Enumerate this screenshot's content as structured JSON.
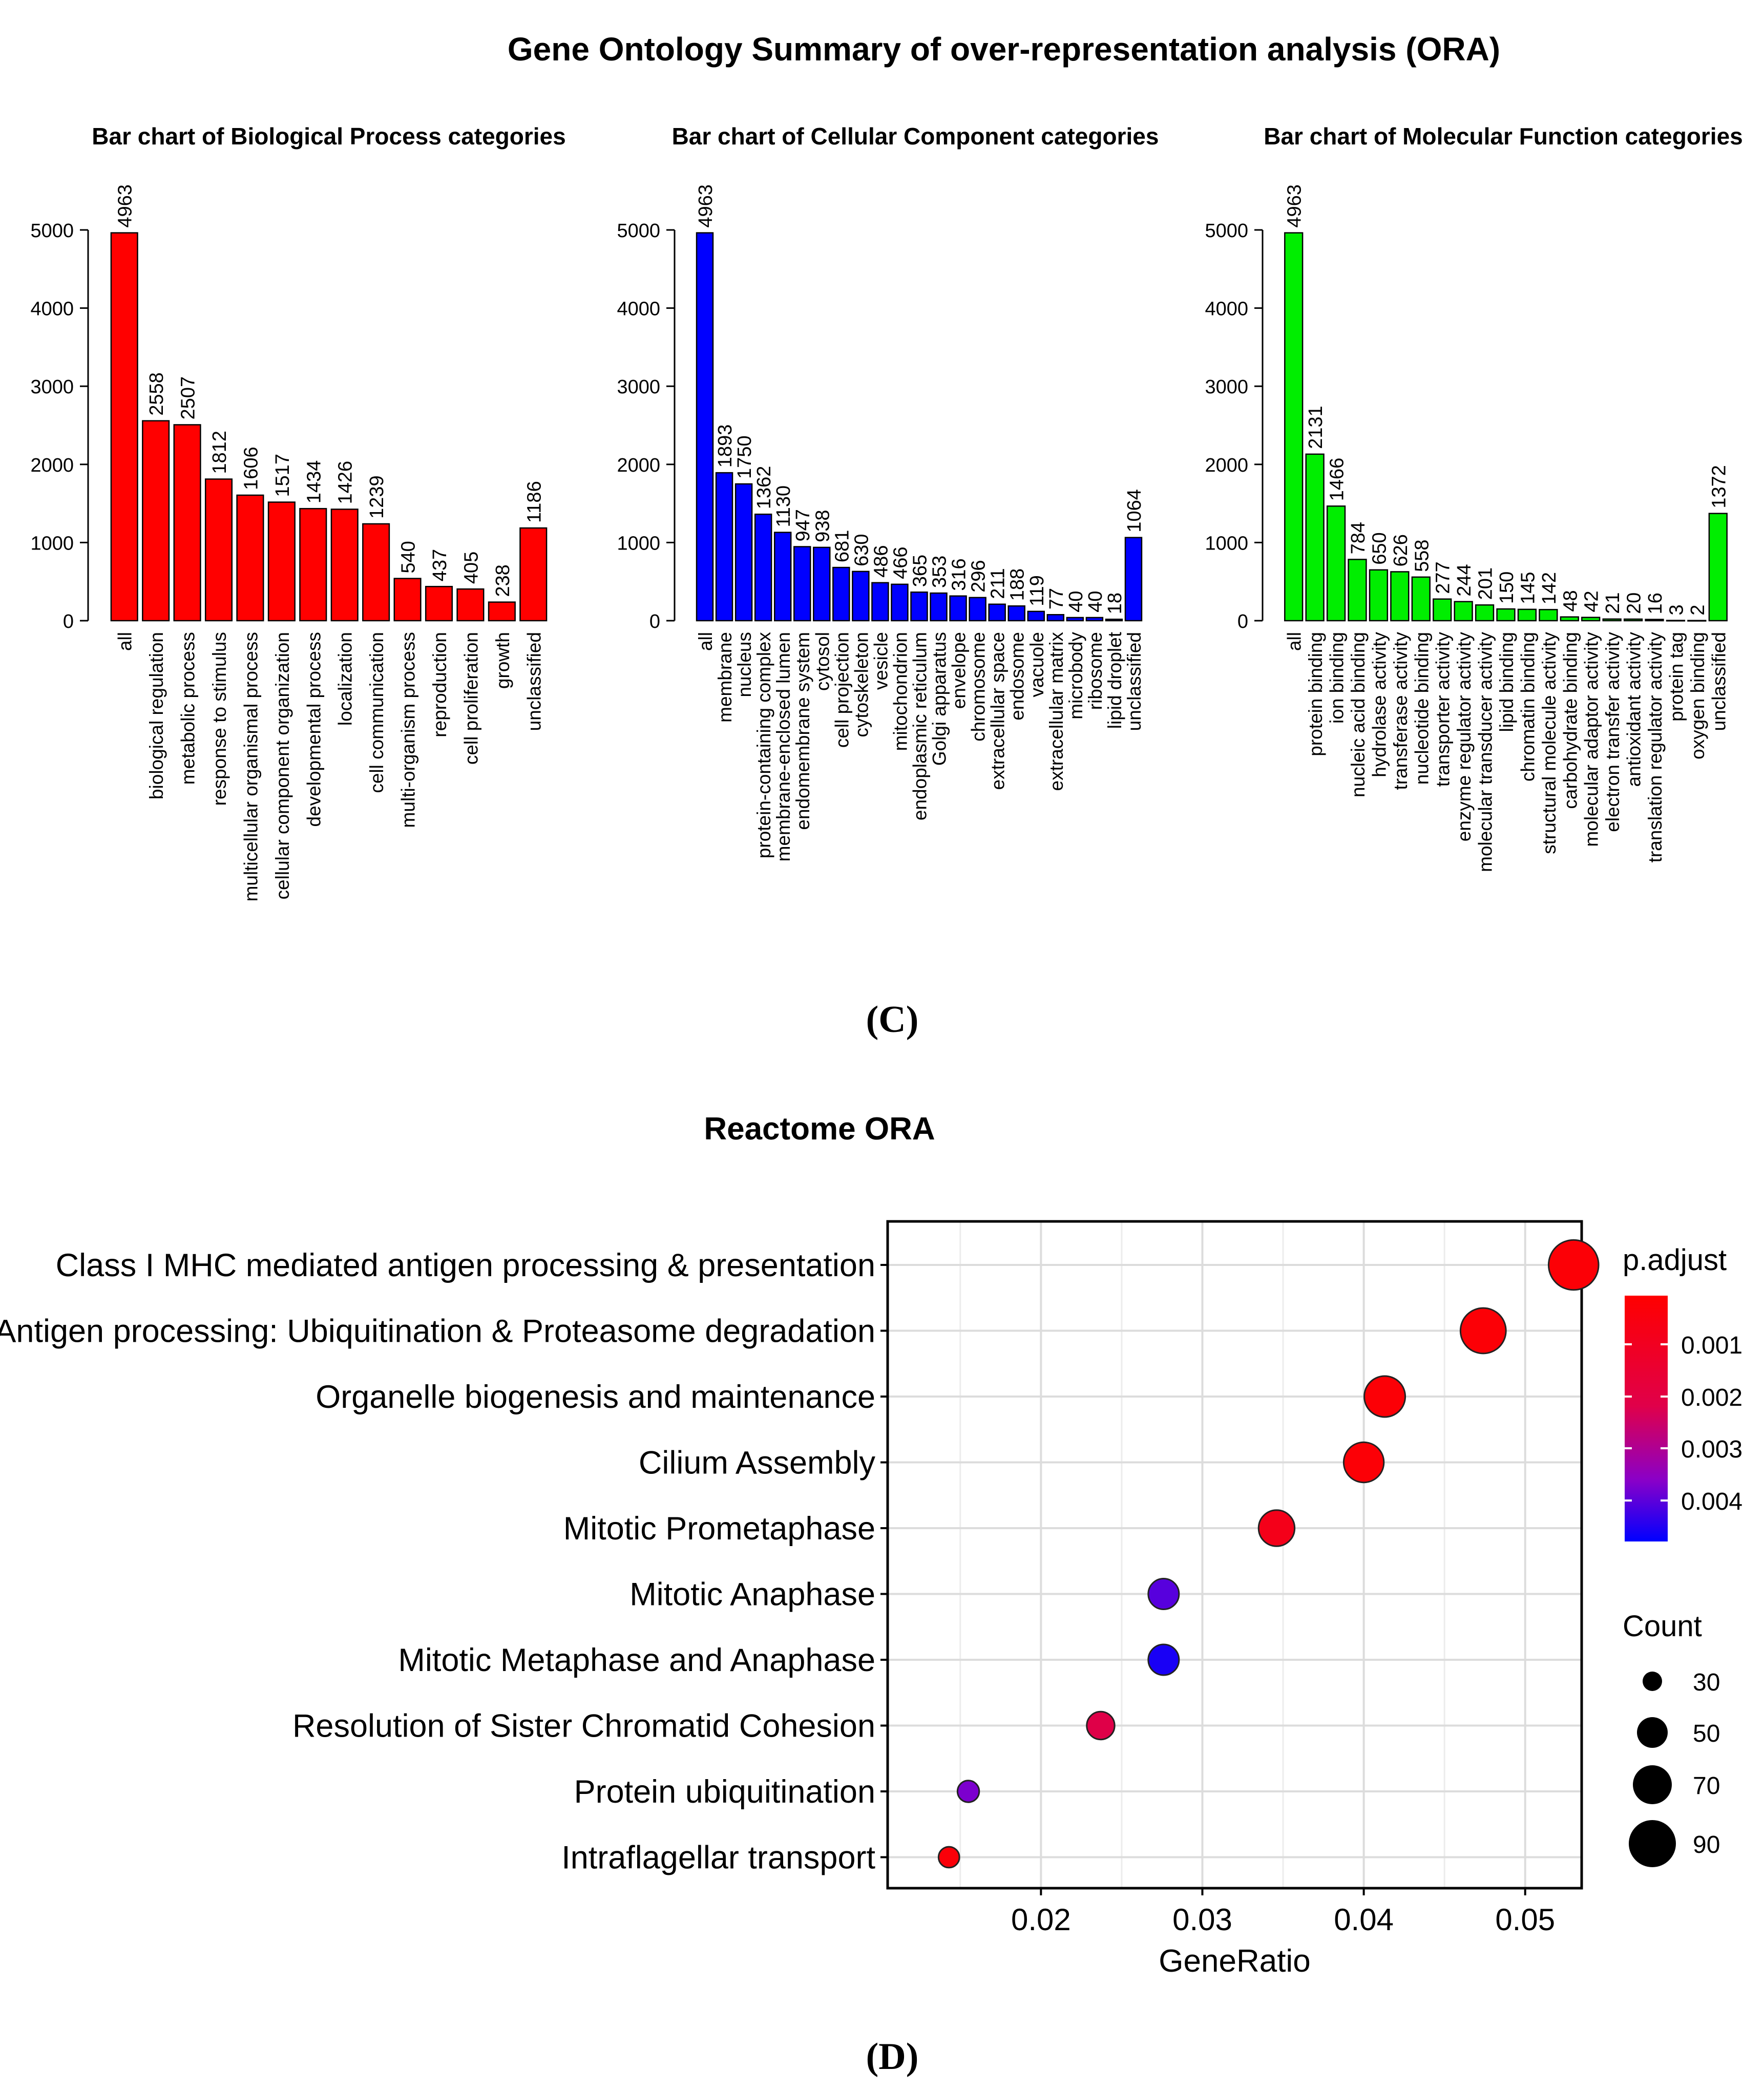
{
  "figure": {
    "go_title": "Gene Ontology Summary of over-representation analysis (ORA)",
    "label_c": "(C)",
    "label_d": "(D)",
    "colors": {
      "bp": "#ff0000",
      "cc": "#0000ff",
      "mf": "#00ee00",
      "bar_stroke": "#000000"
    }
  },
  "chart_data": [
    {
      "type": "bar",
      "title": "Bar chart of Biological Process categories",
      "color": "#ff0000",
      "ylim": [
        0,
        5000
      ],
      "yticks": [
        0,
        1000,
        2000,
        3000,
        4000,
        5000
      ],
      "categories": [
        "all",
        "biological regulation",
        "metabolic process",
        "response to stimulus",
        "multicellular organismal process",
        "cellular component organization",
        "developmental process",
        "localization",
        "cell communication",
        "multi-organism process",
        "reproduction",
        "cell proliferation",
        "growth",
        "unclassified"
      ],
      "values": [
        4963,
        2558,
        2507,
        1812,
        1606,
        1517,
        1434,
        1426,
        1239,
        540,
        437,
        405,
        238,
        1186
      ]
    },
    {
      "type": "bar",
      "title": "Bar chart of Cellular Component categories",
      "color": "#0000ff",
      "ylim": [
        0,
        5000
      ],
      "yticks": [
        0,
        1000,
        2000,
        3000,
        4000,
        5000
      ],
      "categories": [
        "all",
        "membrane",
        "nucleus",
        "protein-containing complex",
        "membrane-enclosed lumen",
        "endomembrane system",
        "cytosol",
        "cell projection",
        "cytoskeleton",
        "vesicle",
        "mitochondrion",
        "endoplasmic reticulum",
        "Golgi apparatus",
        "envelope",
        "chromosome",
        "extracellular space",
        "endosome",
        "vacuole",
        "extracellular matrix",
        "microbody",
        "ribosome",
        "lipid droplet",
        "unclassified"
      ],
      "values": [
        4963,
        1893,
        1750,
        1362,
        1130,
        947,
        938,
        681,
        630,
        486,
        466,
        365,
        353,
        316,
        296,
        211,
        188,
        119,
        77,
        40,
        40,
        18,
        1064
      ]
    },
    {
      "type": "bar",
      "title": "Bar chart of Molecular Function categories",
      "color": "#00ee00",
      "ylim": [
        0,
        5000
      ],
      "yticks": [
        0,
        1000,
        2000,
        3000,
        4000,
        5000
      ],
      "categories": [
        "all",
        "protein binding",
        "ion binding",
        "nucleic acid binding",
        "hydrolase activity",
        "transferase activity",
        "nucleotide binding",
        "transporter activity",
        "enzyme regulator activity",
        "molecular transducer activity",
        "lipid binding",
        "chromatin binding",
        "structural molecule activity",
        "carbohydrate binding",
        "molecular adaptor activity",
        "electron transfer activity",
        "antioxidant activity",
        "translation regulator activity",
        "protein tag",
        "oxygen binding",
        "unclassified"
      ],
      "values": [
        4963,
        2131,
        1466,
        784,
        650,
        626,
        558,
        277,
        244,
        201,
        150,
        145,
        142,
        48,
        42,
        21,
        20,
        16,
        3,
        2,
        1372
      ]
    },
    {
      "type": "scatter",
      "title": "Reactome ORA",
      "xlabel": "GeneRatio",
      "xlim": [
        0.0105,
        0.0535
      ],
      "xticks": [
        0.02,
        0.03,
        0.04,
        0.05
      ],
      "xtick_labels": [
        "0.02",
        "0.03",
        "0.04",
        "0.05"
      ],
      "color_legend_title": "p.adjust",
      "color_ticks": [
        "0.001",
        "0.002",
        "0.003",
        "0.004"
      ],
      "color_range": [
        0.0002,
        0.0047
      ],
      "color_low": "#ff0000",
      "color_high": "#0000ff",
      "size_legend_title": "Count",
      "size_ticks": [
        "30",
        "50",
        "70",
        "90"
      ],
      "count_range": [
        25,
        95
      ],
      "points": [
        {
          "term": "Class I MHC mediated antigen processing & presentation",
          "gene_ratio": 0.053,
          "p_adjust": 0.0004,
          "count": 97
        },
        {
          "term": "Antigen processing: Ubiquitination & Proteasome degradation",
          "gene_ratio": 0.0474,
          "p_adjust": 0.0004,
          "count": 86
        },
        {
          "term": "Organelle biogenesis and maintenance",
          "gene_ratio": 0.0413,
          "p_adjust": 0.0004,
          "count": 75
        },
        {
          "term": "Cilium Assembly",
          "gene_ratio": 0.04,
          "p_adjust": 0.0004,
          "count": 73
        },
        {
          "term": "Mitotic Prometaphase",
          "gene_ratio": 0.0346,
          "p_adjust": 0.001,
          "count": 63
        },
        {
          "term": "Mitotic Anaphase",
          "gene_ratio": 0.0276,
          "p_adjust": 0.004,
          "count": 50
        },
        {
          "term": "Mitotic Metaphase and Anaphase",
          "gene_ratio": 0.0276,
          "p_adjust": 0.0045,
          "count": 50
        },
        {
          "term": "Resolution of Sister Chromatid Cohesion",
          "gene_ratio": 0.0237,
          "p_adjust": 0.0023,
          "count": 43
        },
        {
          "term": "Protein ubiquitination",
          "gene_ratio": 0.0155,
          "p_adjust": 0.0037,
          "count": 28
        },
        {
          "term": "Intraflagellar transport",
          "gene_ratio": 0.0143,
          "p_adjust": 0.0005,
          "count": 26
        }
      ]
    }
  ]
}
